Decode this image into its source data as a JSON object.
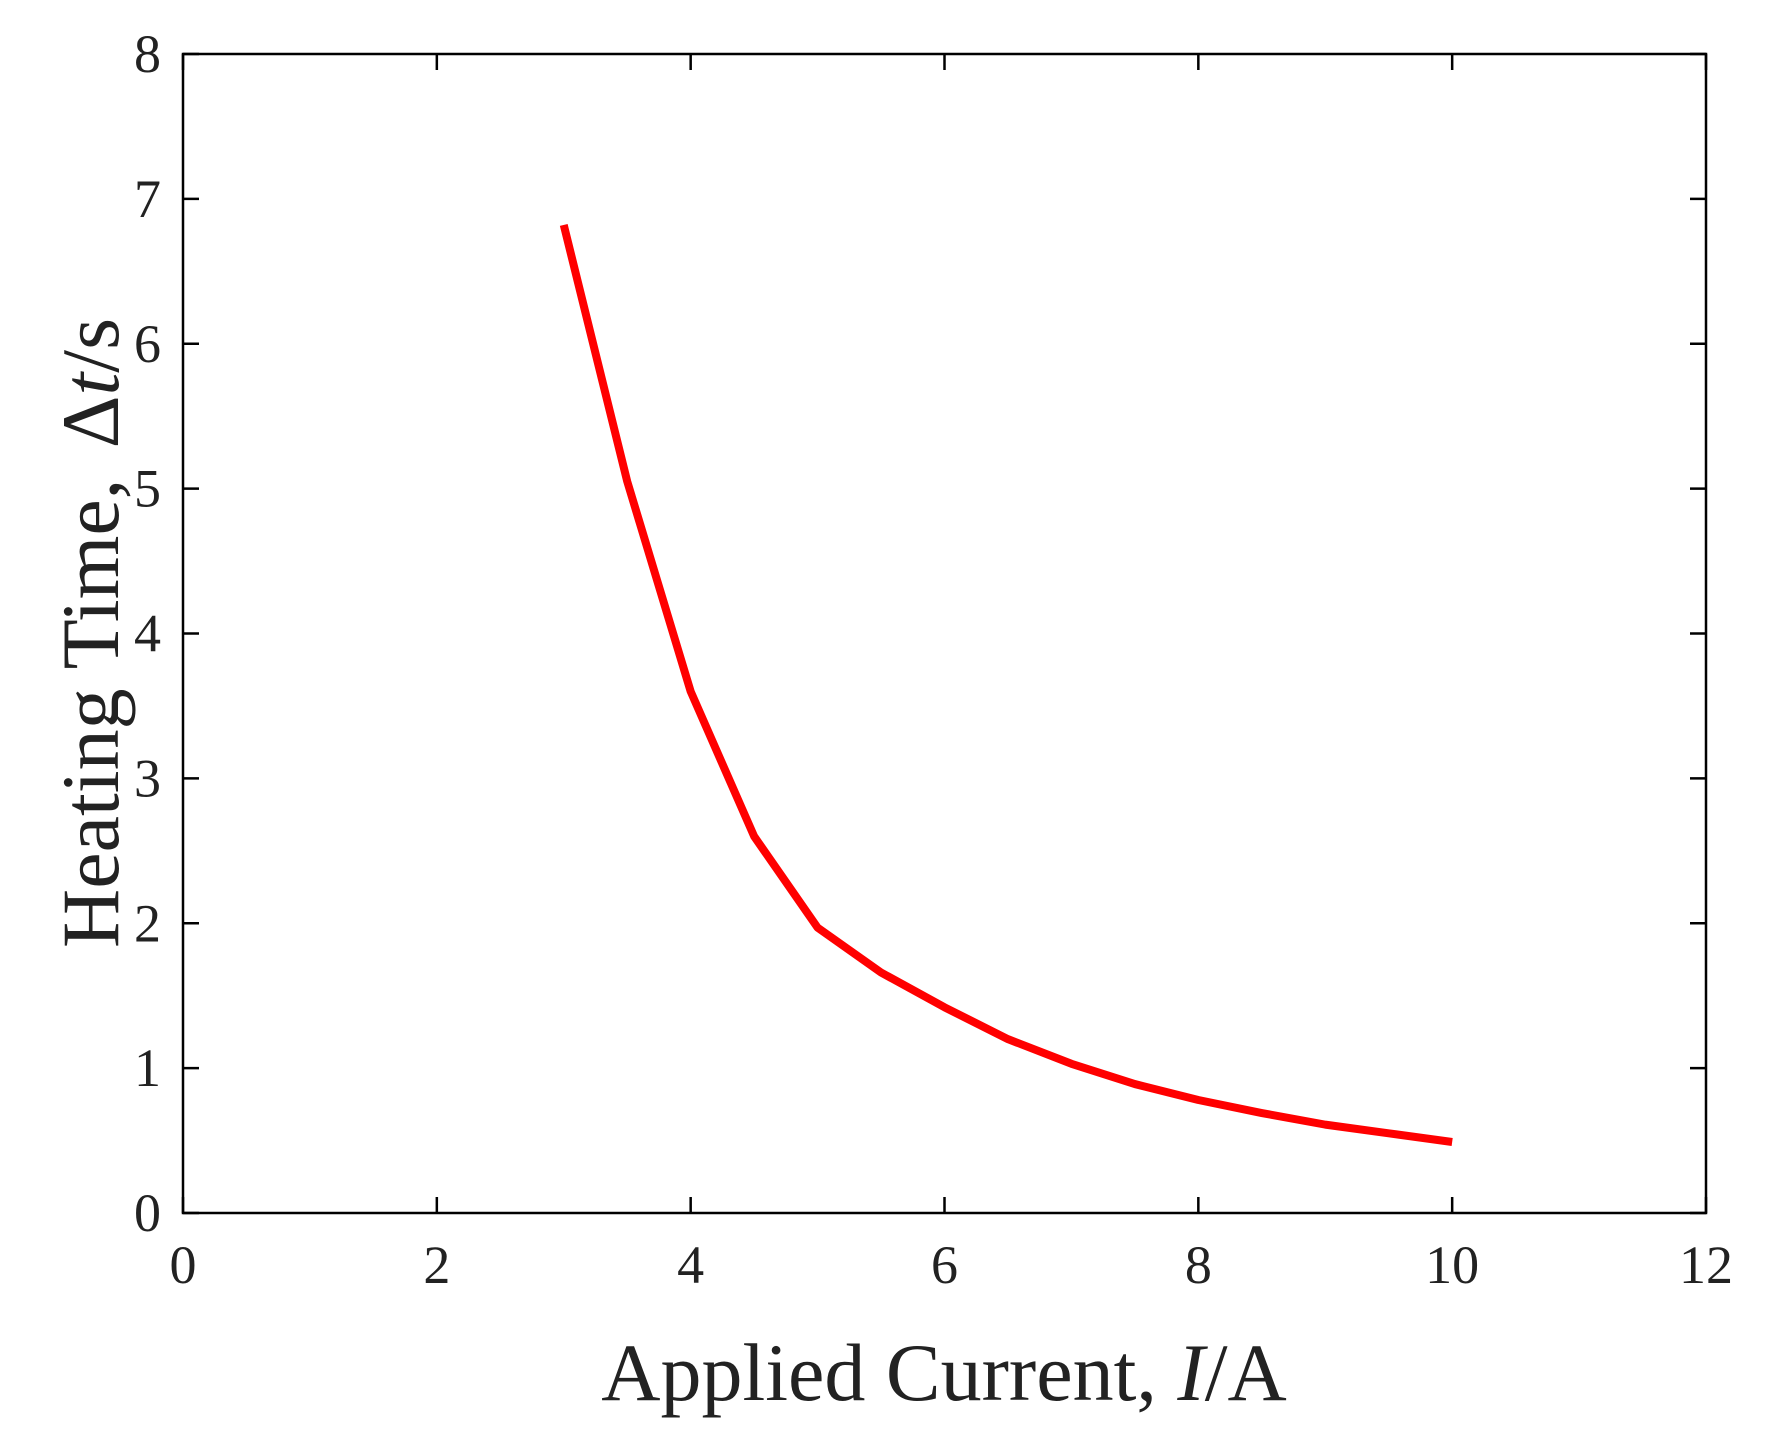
{
  "chart_data": {
    "type": "line",
    "x_label": [
      "Applied Current, ",
      "I",
      "/A"
    ],
    "y_label": [
      "Heating Time, ",
      "Δ",
      "t",
      "/s"
    ],
    "x": [
      3,
      3.5,
      4,
      4.5,
      5,
      5.5,
      6,
      6.5,
      7,
      7.5,
      8,
      8.5,
      9,
      9.5,
      10
    ],
    "values": [
      6.82,
      5.05,
      3.6,
      2.6,
      1.97,
      1.66,
      1.42,
      1.2,
      1.03,
      0.89,
      0.78,
      0.69,
      0.61,
      0.55,
      0.49
    ],
    "color": "#ff0000",
    "xlim": [
      0,
      12
    ],
    "xticks": [
      0,
      2,
      4,
      6,
      8,
      10,
      12
    ],
    "ylim": [
      0,
      8
    ],
    "yticks": [
      0,
      1,
      2,
      3,
      4,
      5,
      6,
      7,
      8
    ]
  }
}
